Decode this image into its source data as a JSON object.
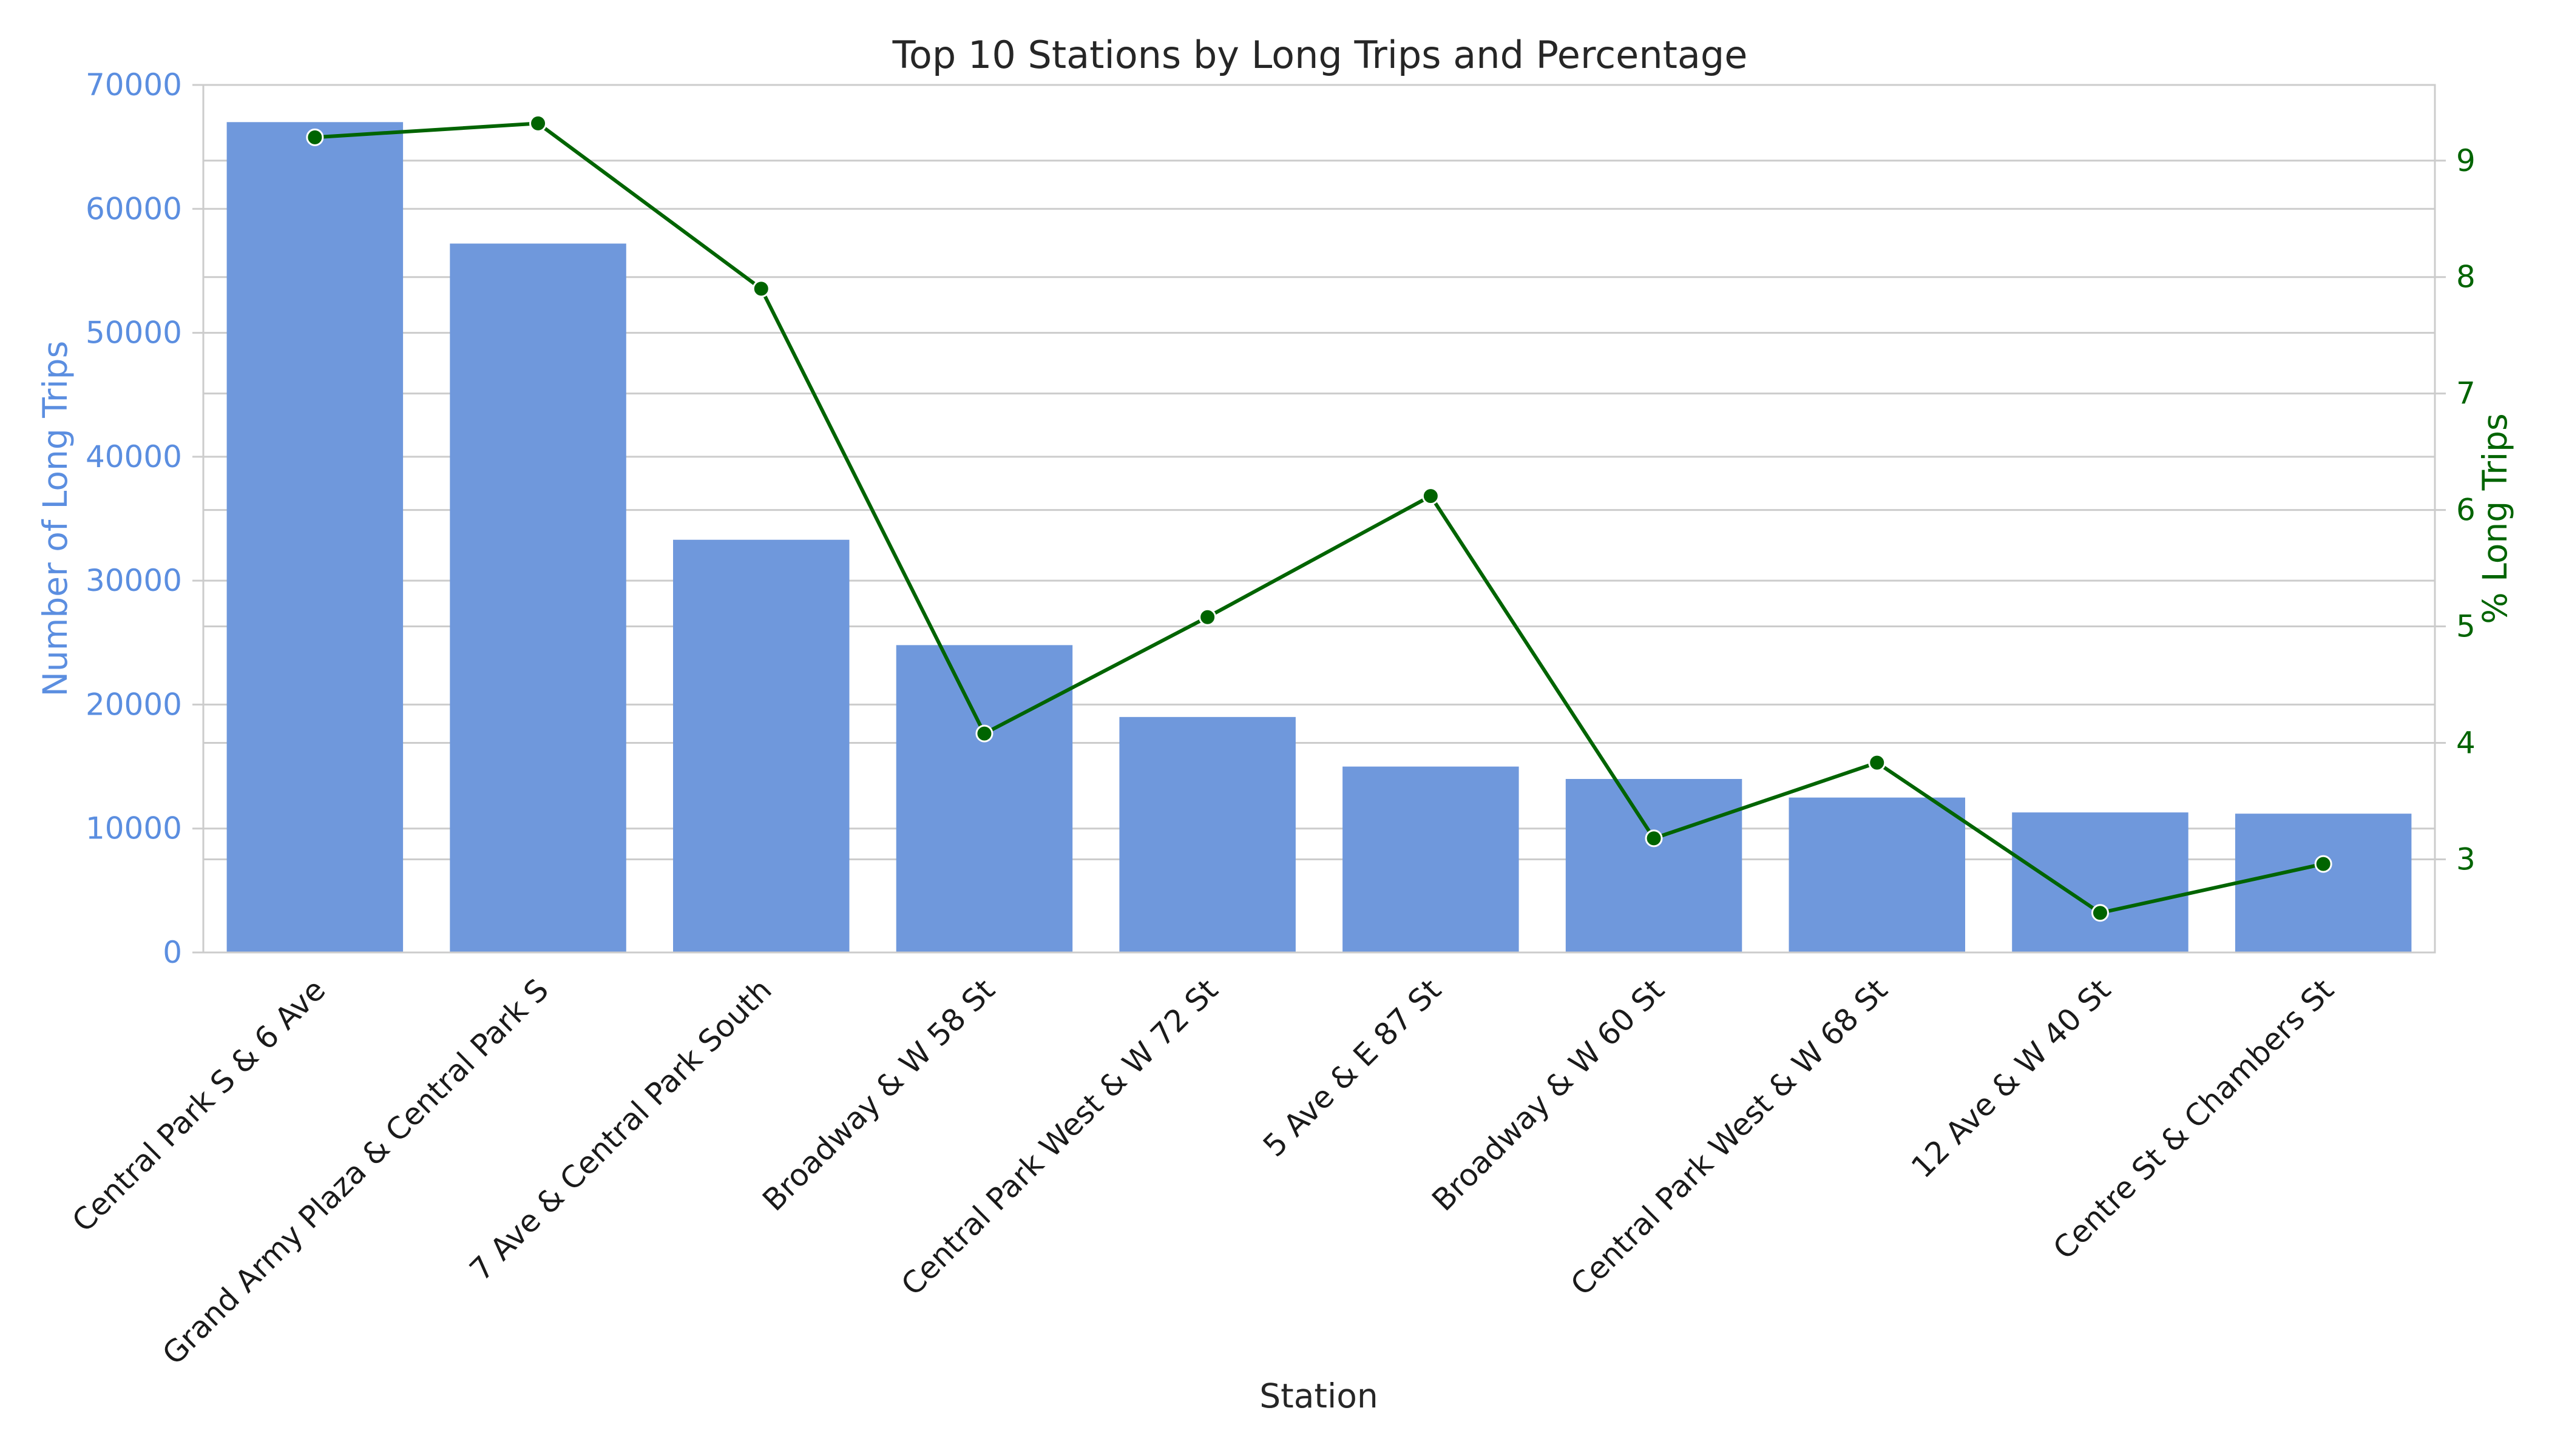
{
  "chart_data": {
    "type": "bar",
    "title": "Top 10 Stations by Long Trips and Percentage",
    "xlabel": "Station",
    "ylabel_left": "Number of Long Trips",
    "ylabel_right": "% Long Trips",
    "categories": [
      "Central Park S & 6 Ave",
      "Grand Army Plaza & Central Park S",
      "7 Ave & Central Park South",
      "Broadway & W 58 St",
      "Central Park West & W 72 St",
      "5 Ave & E 87 St",
      "Broadway & W 60 St",
      "Central Park West & W 68 St",
      "12 Ave & W 40 St",
      "Centre St & Chambers St"
    ],
    "series": [
      {
        "name": "Number of Long Trips",
        "kind": "bar",
        "axis": "left",
        "color": "#6f98dc",
        "values": [
          67000,
          57200,
          33300,
          24800,
          19000,
          15000,
          14000,
          12500,
          11300,
          11200
        ]
      },
      {
        "name": "% Long Trips",
        "kind": "line",
        "axis": "right",
        "color": "#006400",
        "values": [
          9.2,
          9.32,
          7.9,
          4.08,
          5.08,
          6.12,
          3.18,
          3.83,
          2.54,
          2.96
        ]
      }
    ],
    "ylim_left": [
      0,
      70000
    ],
    "ylim_right": [
      2.2,
      9.65
    ],
    "yticks_left": [
      0,
      10000,
      20000,
      30000,
      40000,
      50000,
      60000,
      70000
    ],
    "yticks_right": [
      3,
      4,
      5,
      6,
      7,
      8,
      9
    ],
    "grid": true,
    "left_axis_color": "#5b8ee0",
    "right_axis_color": "#006400"
  }
}
